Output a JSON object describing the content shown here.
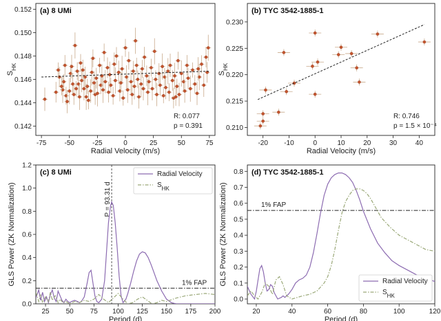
{
  "chart_data": [
    {
      "type": "scatter",
      "panel": "a",
      "title": "(a) 8 UMi",
      "xlabel": "Radial Velocity (m/s)",
      "ylabel": "S_HK",
      "xlim": [
        -80,
        80
      ],
      "ylim": [
        0.1412,
        0.1525
      ],
      "xticks": [
        -75,
        -50,
        -25,
        0,
        25,
        50,
        75
      ],
      "yticks": [
        0.142,
        0.144,
        0.146,
        0.148,
        0.15,
        0.152
      ],
      "ytick_labels": [
        "0.142",
        "0.144",
        "0.146",
        "0.148",
        "0.150",
        "0.152"
      ],
      "fit_line": {
        "x": [
          -75,
          75
        ],
        "y": [
          0.1462,
          0.1467
        ]
      },
      "stats": {
        "r_label": "R",
        "r": "0.077",
        "p_label": "p",
        "p": "0.391"
      },
      "points": [
        [
          -72,
          0.1443
        ],
        [
          -62,
          0.1449
        ],
        [
          -59,
          0.1462
        ],
        [
          -56,
          0.1451
        ],
        [
          -55,
          0.1458
        ],
        [
          -53,
          0.1446
        ],
        [
          -52,
          0.1441
        ],
        [
          -50,
          0.145
        ],
        [
          -49,
          0.1465
        ],
        [
          -48,
          0.1471
        ],
        [
          -47,
          0.1456
        ],
        [
          -46,
          0.1447
        ],
        [
          -45,
          0.1489
        ],
        [
          -44,
          0.1452
        ],
        [
          -43,
          0.1467
        ],
        [
          -42,
          0.1456
        ],
        [
          -41,
          0.1445
        ],
        [
          -40,
          0.1474
        ],
        [
          -39,
          0.1459
        ],
        [
          -38,
          0.1468
        ],
        [
          -36,
          0.1462
        ],
        [
          -35,
          0.1445
        ],
        [
          -34,
          0.1454
        ],
        [
          -33,
          0.1442
        ],
        [
          -31,
          0.145
        ],
        [
          -30,
          0.1466
        ],
        [
          -29,
          0.1478
        ],
        [
          -28,
          0.1457
        ],
        [
          -27,
          0.1447
        ],
        [
          -26,
          0.1461
        ],
        [
          -25,
          0.1448
        ],
        [
          -23,
          0.1472
        ],
        [
          -22,
          0.1455
        ],
        [
          -21,
          0.1463
        ],
        [
          -20,
          0.1451
        ],
        [
          -19,
          0.1483
        ],
        [
          -18,
          0.1458
        ],
        [
          -16,
          0.147
        ],
        [
          -15,
          0.1449
        ],
        [
          -14,
          0.1464
        ],
        [
          -13,
          0.1455
        ],
        [
          -11,
          0.1446
        ],
        [
          -10,
          0.1473
        ],
        [
          -9,
          0.1459
        ],
        [
          -8,
          0.148
        ],
        [
          -6,
          0.1466
        ],
        [
          -5,
          0.145
        ],
        [
          -4,
          0.1457
        ],
        [
          -3,
          0.1469
        ],
        [
          -2,
          0.1444
        ],
        [
          0,
          0.1487
        ],
        [
          1,
          0.1462
        ],
        [
          2,
          0.1451
        ],
        [
          3,
          0.1476
        ],
        [
          5,
          0.1458
        ],
        [
          6,
          0.1447
        ],
        [
          7,
          0.1467
        ],
        [
          8,
          0.1454
        ],
        [
          10,
          0.1472
        ],
        [
          11,
          0.146
        ],
        [
          12,
          0.1445
        ],
        [
          14,
          0.1456
        ],
        [
          15,
          0.1469
        ],
        [
          16,
          0.1452
        ],
        [
          17,
          0.1479
        ],
        [
          19,
          0.1463
        ],
        [
          20,
          0.1449
        ],
        [
          21,
          0.1458
        ],
        [
          23,
          0.147
        ],
        [
          24,
          0.1452
        ],
        [
          26,
          0.1484
        ],
        [
          27,
          0.146
        ],
        [
          28,
          0.1447
        ],
        [
          30,
          0.1465
        ],
        [
          31,
          0.1455
        ],
        [
          33,
          0.1471
        ],
        [
          34,
          0.1446
        ],
        [
          35,
          0.1462
        ],
        [
          36,
          0.1453
        ],
        [
          38,
          0.1467
        ],
        [
          39,
          0.1449
        ],
        [
          40,
          0.1472
        ],
        [
          42,
          0.1459
        ],
        [
          43,
          0.1444
        ],
        [
          44,
          0.1463
        ],
        [
          46,
          0.1454
        ],
        [
          47,
          0.1476
        ],
        [
          48,
          0.1447
        ],
        [
          50,
          0.1465
        ],
        [
          52,
          0.1458
        ],
        [
          53,
          0.145
        ],
        [
          55,
          0.1472
        ],
        [
          56,
          0.1461
        ],
        [
          58,
          0.1452
        ],
        [
          60,
          0.1468
        ],
        [
          62,
          0.1456
        ],
        [
          64,
          0.1448
        ],
        [
          66,
          0.1462
        ],
        [
          68,
          0.1473
        ],
        [
          70,
          0.1455
        ],
        [
          72,
          0.1479
        ],
        [
          73,
          0.1466
        ],
        [
          74,
          0.1487
        ],
        [
          -60,
          0.1468
        ],
        [
          -57,
          0.1454
        ],
        [
          -37,
          0.1452
        ],
        [
          9,
          0.1493
        ],
        [
          45,
          0.1445
        ],
        [
          65,
          0.1469
        ],
        [
          -54,
          0.1472
        ]
      ]
    },
    {
      "type": "scatter",
      "panel": "b",
      "title": "(b) TYC 3542-1885-1",
      "xlabel": "Radial Velocity (m/s)",
      "ylabel": "S_HK",
      "xlim": [
        -26,
        46
      ],
      "ylim": [
        0.2085,
        0.2335
      ],
      "xticks": [
        -20,
        -10,
        0,
        10,
        20,
        30,
        40
      ],
      "yticks": [
        0.21,
        0.215,
        0.22,
        0.225,
        0.23
      ],
      "ytick_labels": [
        "0.210",
        "0.215",
        "0.220",
        "0.225",
        "0.230"
      ],
      "fit_line": {
        "x": [
          -22,
          42
        ],
        "y": [
          0.2153,
          0.2295
        ]
      },
      "stats": {
        "r_label": "R",
        "r": "0.746",
        "p_label": "p",
        "p": "1.5 × 10⁻⁴"
      },
      "points": [
        [
          -21,
          0.2103
        ],
        [
          -20,
          0.2112
        ],
        [
          -20,
          0.2126
        ],
        [
          -19,
          0.2171
        ],
        [
          -14,
          0.2129
        ],
        [
          -12,
          0.2242
        ],
        [
          -11,
          0.2168
        ],
        [
          -8,
          0.2184
        ],
        [
          -1,
          0.2216
        ],
        [
          0,
          0.2279
        ],
        [
          0,
          0.2163
        ],
        [
          1,
          0.2224
        ],
        [
          9,
          0.2238
        ],
        [
          10,
          0.2252
        ],
        [
          14,
          0.224
        ],
        [
          16,
          0.2213
        ],
        [
          17,
          0.2186
        ],
        [
          24,
          0.2277
        ],
        [
          42,
          0.2262
        ]
      ]
    },
    {
      "type": "line",
      "panel": "c",
      "title": "(c) 8 UMi",
      "xlabel": "Period (d)",
      "ylabel": "GLS Power (ZK Normalization)",
      "xlim": [
        15,
        200
      ],
      "ylim": [
        0,
        1.2
      ],
      "xticks": [
        25,
        50,
        75,
        100,
        125,
        150,
        175,
        200
      ],
      "yticks": [
        0.0,
        0.2,
        0.4,
        0.6,
        0.8,
        1.0,
        1.2
      ],
      "ytick_labels": [
        "0.0",
        "0.2",
        "0.4",
        "0.6",
        "0.8",
        "1.0",
        "1.2"
      ],
      "fap": {
        "label": "1% FAP",
        "value": 0.135
      },
      "period_marker": {
        "label": "P = 93.31 d",
        "value": 93.31
      },
      "series": [
        {
          "name": "Radial Velocity",
          "color": "#8c6bb1",
          "style": "solid",
          "x": [
            15,
            18,
            20,
            22,
            24,
            26,
            28,
            30,
            32,
            34,
            36,
            38,
            40,
            42,
            44,
            46,
            48,
            50,
            52,
            55,
            58,
            60,
            62,
            65,
            68,
            70,
            72,
            74,
            76,
            78,
            80,
            83,
            86,
            88,
            90,
            92,
            93.3,
            95,
            97,
            99,
            101,
            103,
            105,
            108,
            110,
            113,
            116,
            119,
            122,
            125,
            128,
            131,
            134,
            137,
            140,
            145,
            150,
            155,
            160,
            165,
            170,
            175,
            180,
            185,
            190,
            195,
            200
          ],
          "y": [
            0.05,
            0.12,
            0.03,
            0.1,
            0.02,
            0.06,
            0.01,
            0.08,
            0.12,
            0.05,
            0.02,
            0.11,
            0.07,
            0.03,
            0.01,
            0.04,
            0.02,
            0.01,
            0.02,
            0.03,
            0.02,
            0.01,
            0.02,
            0.06,
            0.18,
            0.27,
            0.29,
            0.18,
            0.07,
            0.02,
            0.01,
            0.04,
            0.2,
            0.45,
            0.7,
            0.84,
            0.88,
            0.85,
            0.7,
            0.48,
            0.24,
            0.07,
            0.01,
            0.04,
            0.09,
            0.18,
            0.28,
            0.37,
            0.43,
            0.45,
            0.44,
            0.4,
            0.34,
            0.27,
            0.2,
            0.11,
            0.04,
            0.01,
            0.0,
            0.0,
            0.0,
            0.0,
            0.0,
            0.0,
            0.0,
            0.0,
            0.0
          ]
        },
        {
          "name": "S_HK",
          "color": "#9aa878",
          "style": "dashdot",
          "x": [
            15,
            18,
            20,
            22,
            25,
            28,
            30,
            32,
            35,
            38,
            40,
            43,
            46,
            50,
            55,
            60,
            65,
            70,
            75,
            80,
            85,
            90,
            95,
            100,
            105,
            110,
            115,
            120,
            125,
            130,
            135,
            140,
            145,
            150,
            160,
            170,
            180,
            190,
            200
          ],
          "y": [
            0.1,
            0.02,
            0.08,
            0.01,
            0.06,
            0.02,
            0.1,
            0.03,
            0.07,
            0.01,
            0.04,
            0.01,
            0.02,
            0.0,
            0.02,
            0.01,
            0.03,
            0.02,
            0.04,
            0.08,
            0.04,
            0.01,
            0.05,
            0.09,
            0.04,
            0.0,
            0.01,
            0.04,
            0.06,
            0.03,
            0.0,
            0.01,
            0.03,
            0.02,
            0.05,
            0.07,
            0.08,
            0.09,
            0.08
          ]
        }
      ]
    },
    {
      "type": "line",
      "panel": "d",
      "title": "(d) TYC 3542-1885-1",
      "xlabel": "Period (d)",
      "ylabel": "GLS Power (ZK Normalization)",
      "xlim": [
        15,
        120
      ],
      "ylim": [
        -0.03,
        0.84
      ],
      "xticks": [
        20,
        40,
        60,
        80,
        100,
        120
      ],
      "yticks": [
        0.0,
        0.1,
        0.2,
        0.3,
        0.4,
        0.5,
        0.6,
        0.7,
        0.8
      ],
      "ytick_labels": [
        "0.0",
        "0.1",
        "0.2",
        "0.3",
        "0.4",
        "0.5",
        "0.6",
        "0.7",
        "0.8"
      ],
      "fap": {
        "label": "1% FAP",
        "value": 0.555
      },
      "series": [
        {
          "name": "Radial Velocity",
          "color": "#8c6bb1",
          "style": "solid",
          "x": [
            15,
            17,
            19,
            20,
            21,
            22,
            23,
            24,
            25,
            26,
            27,
            28,
            29,
            30,
            32,
            34,
            35,
            36,
            38,
            40,
            42,
            44,
            46,
            48,
            50,
            52,
            54,
            56,
            58,
            60,
            62,
            64,
            66,
            68,
            70,
            72,
            74,
            76,
            78,
            80,
            84,
            88,
            92,
            96,
            100,
            105,
            110,
            115,
            120
          ],
          "y": [
            0.08,
            0.03,
            0.0,
            0.05,
            0.12,
            0.19,
            0.21,
            0.17,
            0.1,
            0.05,
            0.06,
            0.09,
            0.08,
            0.04,
            0.0,
            0.01,
            0.02,
            0.01,
            0.03,
            0.06,
            0.1,
            0.12,
            0.13,
            0.15,
            0.2,
            0.29,
            0.41,
            0.54,
            0.65,
            0.72,
            0.76,
            0.78,
            0.79,
            0.79,
            0.78,
            0.76,
            0.73,
            0.68,
            0.62,
            0.55,
            0.44,
            0.35,
            0.29,
            0.24,
            0.21,
            0.18,
            0.15,
            0.13,
            0.11
          ]
        },
        {
          "name": "S_HK",
          "color": "#9aa878",
          "style": "dashdot",
          "x": [
            15,
            17,
            19,
            21,
            23,
            25,
            27,
            29,
            31,
            33,
            35,
            37,
            40,
            43,
            46,
            50,
            54,
            58,
            60,
            62,
            64,
            66,
            68,
            70,
            72,
            74,
            76,
            78,
            80,
            82,
            84,
            86,
            88,
            90,
            95,
            100,
            105,
            110,
            115,
            120
          ],
          "y": [
            0.02,
            0.05,
            0.02,
            0.0,
            0.04,
            0.1,
            0.08,
            0.03,
            0.12,
            0.14,
            0.09,
            0.02,
            0.0,
            0.01,
            0.02,
            0.03,
            0.05,
            0.1,
            0.14,
            0.21,
            0.31,
            0.43,
            0.54,
            0.61,
            0.65,
            0.68,
            0.69,
            0.69,
            0.68,
            0.66,
            0.63,
            0.59,
            0.55,
            0.51,
            0.45,
            0.4,
            0.37,
            0.34,
            0.31,
            0.3
          ]
        }
      ]
    }
  ]
}
